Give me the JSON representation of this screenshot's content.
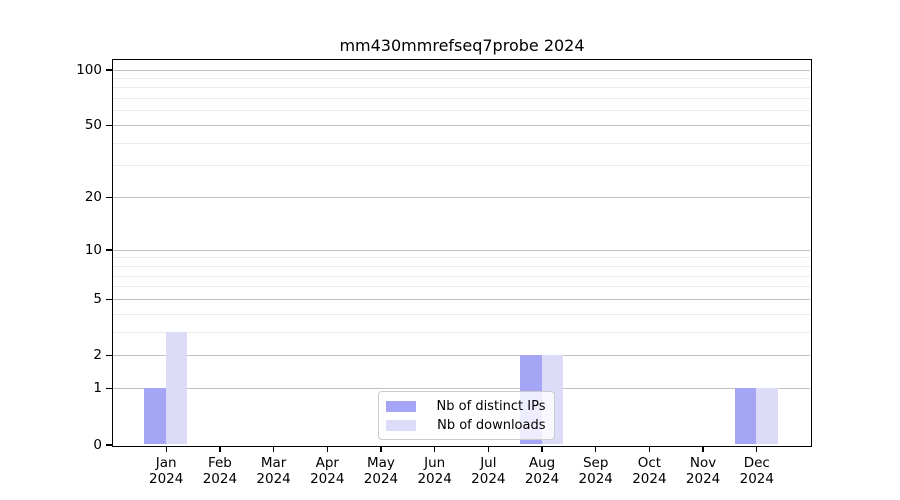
{
  "title": "mm430mmrefseq7probe 2024",
  "legend": {
    "items": [
      {
        "label": "Nb of distinct IPs",
        "color": "#a5a5f6"
      },
      {
        "label": "Nb of downloads",
        "color": "#dcdcf9"
      }
    ],
    "position": "lower center"
  },
  "chart_data": {
    "type": "bar",
    "title": "mm430mmrefseq7probe 2024",
    "categories": [
      "Jan",
      "Feb",
      "Mar",
      "Apr",
      "May",
      "Jun",
      "Jul",
      "Aug",
      "Sep",
      "Oct",
      "Nov",
      "Dec"
    ],
    "year": "2024",
    "series": [
      {
        "name": "Nb of distinct IPs",
        "color": "#a5a5f6",
        "values": [
          1,
          0,
          0,
          0,
          0,
          0,
          0,
          2,
          0,
          0,
          0,
          1
        ]
      },
      {
        "name": "Nb of downloads",
        "color": "#dcdcf9",
        "values": [
          3,
          0,
          0,
          0,
          0,
          0,
          0,
          2,
          0,
          0,
          0,
          1
        ]
      }
    ],
    "xlabel": "",
    "ylabel": "",
    "yscale": "log1p",
    "ylim": [
      0,
      113
    ],
    "y_major_ticks": [
      0,
      1,
      2,
      5,
      10,
      20,
      50,
      100
    ],
    "y_minor_gridlines": [
      3,
      4,
      6,
      7,
      8,
      9,
      30,
      40,
      60,
      70,
      80,
      90
    ],
    "grid": true,
    "legend_position": "lower center"
  },
  "colors": {
    "major_grid": "#c0c0c0",
    "minor_grid": "#ebebeb",
    "spine": "#000000",
    "background": "#ffffff"
  }
}
